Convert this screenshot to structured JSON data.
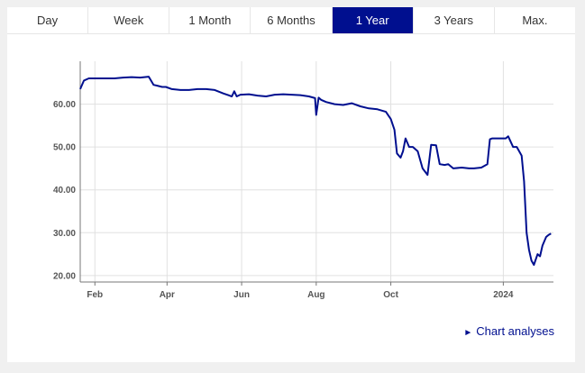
{
  "tabs": [
    {
      "label": "Day",
      "active": false
    },
    {
      "label": "Week",
      "active": false
    },
    {
      "label": "1 Month",
      "active": false
    },
    {
      "label": "6 Months",
      "active": false
    },
    {
      "label": "1 Year",
      "active": true
    },
    {
      "label": "3 Years",
      "active": false
    },
    {
      "label": "Max.",
      "active": false
    }
  ],
  "analyses_link": {
    "arrow": "►",
    "label": "Chart analyses"
  },
  "colors": {
    "accent": "#000f8f",
    "line": "#000f8f",
    "grid": "#e0e0e0"
  },
  "chart_data": {
    "type": "line",
    "title": "",
    "xlabel": "",
    "ylabel": "",
    "ylim": [
      18.5,
      70
    ],
    "y_ticks": [
      "20.00",
      "30.00",
      "40.00",
      "50.00",
      "60.00"
    ],
    "x_ticks": [
      "Feb",
      "Apr",
      "Jun",
      "Aug",
      "Oct",
      "2024"
    ],
    "grid": true,
    "series": [
      {
        "x": [
          "2023-01-20",
          "2023-01-23",
          "2023-01-27",
          "2023-02-03",
          "2023-02-10",
          "2023-02-17",
          "2023-02-24",
          "2023-03-03",
          "2023-03-10",
          "2023-03-17",
          "2023-03-21",
          "2023-03-24",
          "2023-03-28",
          "2023-03-31",
          "2023-04-05",
          "2023-04-12",
          "2023-04-19",
          "2023-04-26",
          "2023-05-03",
          "2023-05-10",
          "2023-05-17",
          "2023-05-24",
          "2023-05-26",
          "2023-05-28",
          "2023-05-31",
          "2023-06-07",
          "2023-06-14",
          "2023-06-21",
          "2023-06-28",
          "2023-07-05",
          "2023-07-12",
          "2023-07-19",
          "2023-07-26",
          "2023-07-31",
          "2023-08-01",
          "2023-08-03",
          "2023-08-05",
          "2023-08-09",
          "2023-08-16",
          "2023-08-23",
          "2023-08-30",
          "2023-09-06",
          "2023-09-13",
          "2023-09-20",
          "2023-09-27",
          "2023-10-01",
          "2023-10-04",
          "2023-10-06",
          "2023-10-09",
          "2023-10-11",
          "2023-10-13",
          "2023-10-16",
          "2023-10-19",
          "2023-10-23",
          "2023-10-27",
          "2023-10-31",
          "2023-11-03",
          "2023-11-07",
          "2023-11-10",
          "2023-11-14",
          "2023-11-17",
          "2023-11-21",
          "2023-11-28",
          "2023-12-04",
          "2023-12-08",
          "2023-12-14",
          "2023-12-19",
          "2023-12-21",
          "2023-12-23",
          "2023-12-26",
          "2024-01-03",
          "2024-01-05",
          "2024-01-09",
          "2024-01-12",
          "2024-01-16",
          "2024-01-18",
          "2024-01-20",
          "2024-01-22",
          "2024-01-24",
          "2024-01-26",
          "2024-01-29",
          "2024-01-31",
          "2024-02-02",
          "2024-02-05",
          "2024-02-07",
          "2024-02-09"
        ],
        "values": [
          63.5,
          65.5,
          66,
          66,
          66,
          66,
          66.2,
          66.3,
          66.2,
          66.4,
          64.5,
          64.3,
          64,
          64,
          63.5,
          63.3,
          63.3,
          63.5,
          63.5,
          63.3,
          62.5,
          61.8,
          63,
          61.8,
          62.2,
          62.3,
          62,
          61.8,
          62.2,
          62.3,
          62.2,
          62.1,
          61.8,
          61.4,
          57.5,
          61.5,
          61,
          60.5,
          60,
          59.8,
          60.2,
          59.5,
          59,
          58.8,
          58.2,
          56.5,
          54,
          48.5,
          47.5,
          49,
          52,
          50,
          50,
          49,
          45,
          43.5,
          50.5,
          50.4,
          46,
          45.8,
          46,
          45,
          45.2,
          45,
          45,
          45.2,
          46,
          51.8,
          52,
          52,
          52,
          52.5,
          50,
          50,
          48,
          42,
          30,
          26,
          23.5,
          22.5,
          25,
          24.5,
          27,
          29,
          29.5,
          29.8
        ]
      }
    ]
  }
}
